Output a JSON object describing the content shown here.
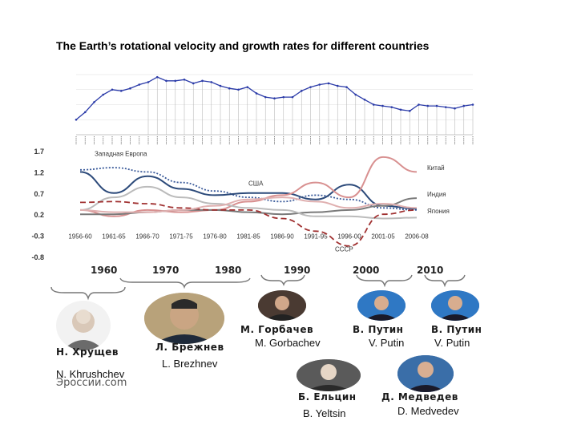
{
  "title": "The Earth’s rotational velocity and growth rates for different countries",
  "chart_top": {
    "type": "line",
    "values": [
      60,
      90,
      130,
      160,
      180,
      175,
      185,
      200,
      210,
      230,
      215,
      215,
      220,
      205,
      215,
      210,
      195,
      185,
      180,
      190,
      165,
      150,
      145,
      150,
      150,
      175,
      190,
      200,
      205,
      195,
      190,
      160,
      140,
      120,
      115,
      110,
      100,
      95,
      120,
      115,
      115,
      110,
      105,
      115,
      120
    ]
  },
  "chart_data": {
    "type": "line",
    "categories": [
      "1956-60",
      "1961-65",
      "1966-70",
      "1971-75",
      "1976-80",
      "1981-85",
      "1986-90",
      "1991-95",
      "1996-00",
      "2001-05",
      "2006-08"
    ],
    "yticks": [
      "1.7",
      "1.2",
      "0.7",
      "0.2",
      "-0.3",
      "-0.8"
    ],
    "ylim": [
      -0.8,
      1.7
    ],
    "series": [
      {
        "name": "Западная Европа",
        "color": "#3a5a9a",
        "style": "dotted",
        "values": [
          1.25,
          1.3,
          1.2,
          0.95,
          0.75,
          0.6,
          0.5,
          0.65,
          0.55,
          0.35,
          0.3
        ]
      },
      {
        "name": "США",
        "color": "#2c4a7a",
        "style": "solid",
        "values": [
          1.2,
          0.7,
          1.1,
          0.8,
          0.65,
          0.7,
          0.7,
          0.55,
          0.9,
          0.4,
          0.33
        ]
      },
      {
        "name": "Китай",
        "color": "#d89090",
        "style": "solid",
        "values": [
          0.3,
          0.15,
          0.3,
          0.25,
          0.3,
          0.5,
          0.65,
          0.95,
          0.6,
          1.55,
          1.2
        ]
      },
      {
        "name": "Индия",
        "color": "#7a7a7a",
        "style": "solid",
        "values": [
          0.2,
          0.2,
          0.25,
          0.3,
          0.3,
          0.25,
          0.2,
          0.25,
          0.3,
          0.4,
          0.58
        ]
      },
      {
        "name": "Япония",
        "color": "#bbbbbb",
        "style": "solid",
        "values": [
          0.3,
          0.6,
          0.85,
          0.6,
          0.45,
          0.35,
          0.3,
          0.15,
          0.15,
          0.1,
          0.12
        ]
      },
      {
        "name": "СССР",
        "color": "#a03030",
        "style": "dashed",
        "values": [
          0.48,
          0.5,
          0.45,
          0.35,
          0.3,
          0.3,
          0.1,
          -0.2,
          -0.55,
          0.2,
          0.3
        ]
      },
      {
        "name": "",
        "color": "#e0b0b0",
        "style": "solid",
        "values": [
          0.3,
          0.25,
          0.25,
          0.3,
          0.4,
          0.55,
          0.6,
          0.5,
          0.35,
          0.45,
          0.35
        ]
      }
    ]
  },
  "timeline": {
    "years": [
      "1960",
      "1970",
      "1980",
      "1990",
      "2000",
      "2010"
    ]
  },
  "leaders": [
    {
      "ru": "Н. Хрущев",
      "en": "N. Khrushchev"
    },
    {
      "ru": "Л. Брежнев",
      "en": "L. Brezhnev"
    },
    {
      "ru": "М. Горбачев",
      "en": "M. Gorbachev"
    },
    {
      "ru": "В. Путин",
      "en": "V. Putin"
    },
    {
      "ru": "В. Путин",
      "en": "V. Putin"
    },
    {
      "ru": "Б. Ельцин",
      "en": "B. Yeltsin"
    },
    {
      "ru": "Д. Медведев",
      "en": "D. Medvedev"
    }
  ],
  "watermark": "Эроссии.com",
  "colors": {
    "top_line": "#2a3aa8",
    "grid": "#cccccc",
    "bracket": "#777777"
  }
}
